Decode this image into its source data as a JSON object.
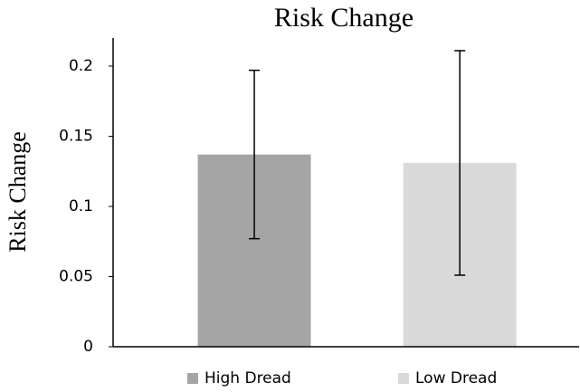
{
  "chart_data": {
    "type": "bar",
    "title": "Risk Change",
    "y_label": "Risk Change",
    "categories": [
      null
    ],
    "series": [
      {
        "name": "High Dread",
        "color": "#a5a5a5",
        "values": [
          0.137
        ],
        "errors": [
          0.06
        ]
      },
      {
        "name": "Low Dread",
        "color": "#d9d9d9",
        "values": [
          0.131
        ],
        "errors": [
          0.08
        ]
      }
    ],
    "ylim": [
      0,
      0.22
    ],
    "yticks": [
      0,
      0.05,
      0.1,
      0.15,
      0.2
    ],
    "grid": false,
    "legend": "bottom"
  }
}
